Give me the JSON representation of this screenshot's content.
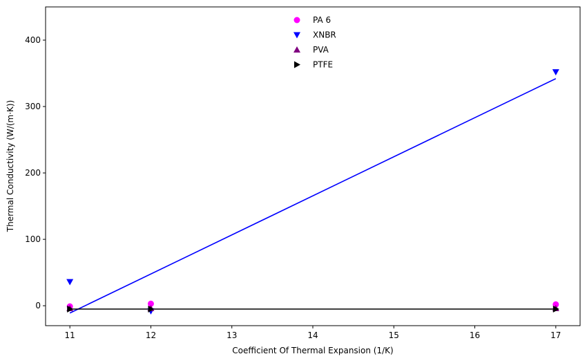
{
  "chart_data": {
    "type": "scatter",
    "title": "",
    "xlabel": "Coefficient Of Thermal Expansion (1/K)",
    "ylabel": "Thermal Conductivity (W/(m·K))",
    "xlim": [
      10.7,
      17.3
    ],
    "ylim": [
      -30,
      450
    ],
    "xticks": [
      11,
      12,
      13,
      14,
      15,
      16,
      17
    ],
    "yticks": [
      0,
      100,
      200,
      300,
      400
    ],
    "grid": false,
    "legend_position": "top-center",
    "series": [
      {
        "name": "PA 6",
        "marker": "circle",
        "color": "#ff00ff",
        "x": [
          11,
          12,
          17
        ],
        "y": [
          -1,
          3,
          2
        ]
      },
      {
        "name": "XNBR",
        "marker": "triangle-down",
        "color": "#0000ff",
        "x": [
          11,
          12,
          17
        ],
        "y": [
          36,
          -8,
          352
        ],
        "fit": {
          "x": [
            11,
            17
          ],
          "y": [
            -11,
            342
          ]
        }
      },
      {
        "name": "PVA",
        "marker": "triangle-up",
        "color": "#800080",
        "x": [
          11,
          12,
          17
        ],
        "y": [
          -4,
          -4,
          -4
        ]
      },
      {
        "name": "PTFE",
        "marker": "triangle-right",
        "color": "#000000",
        "x": [
          11,
          12,
          17
        ],
        "y": [
          -5,
          -5,
          -5
        ],
        "fit": {
          "x": [
            11,
            17
          ],
          "y": [
            -5,
            -5
          ]
        }
      }
    ]
  }
}
